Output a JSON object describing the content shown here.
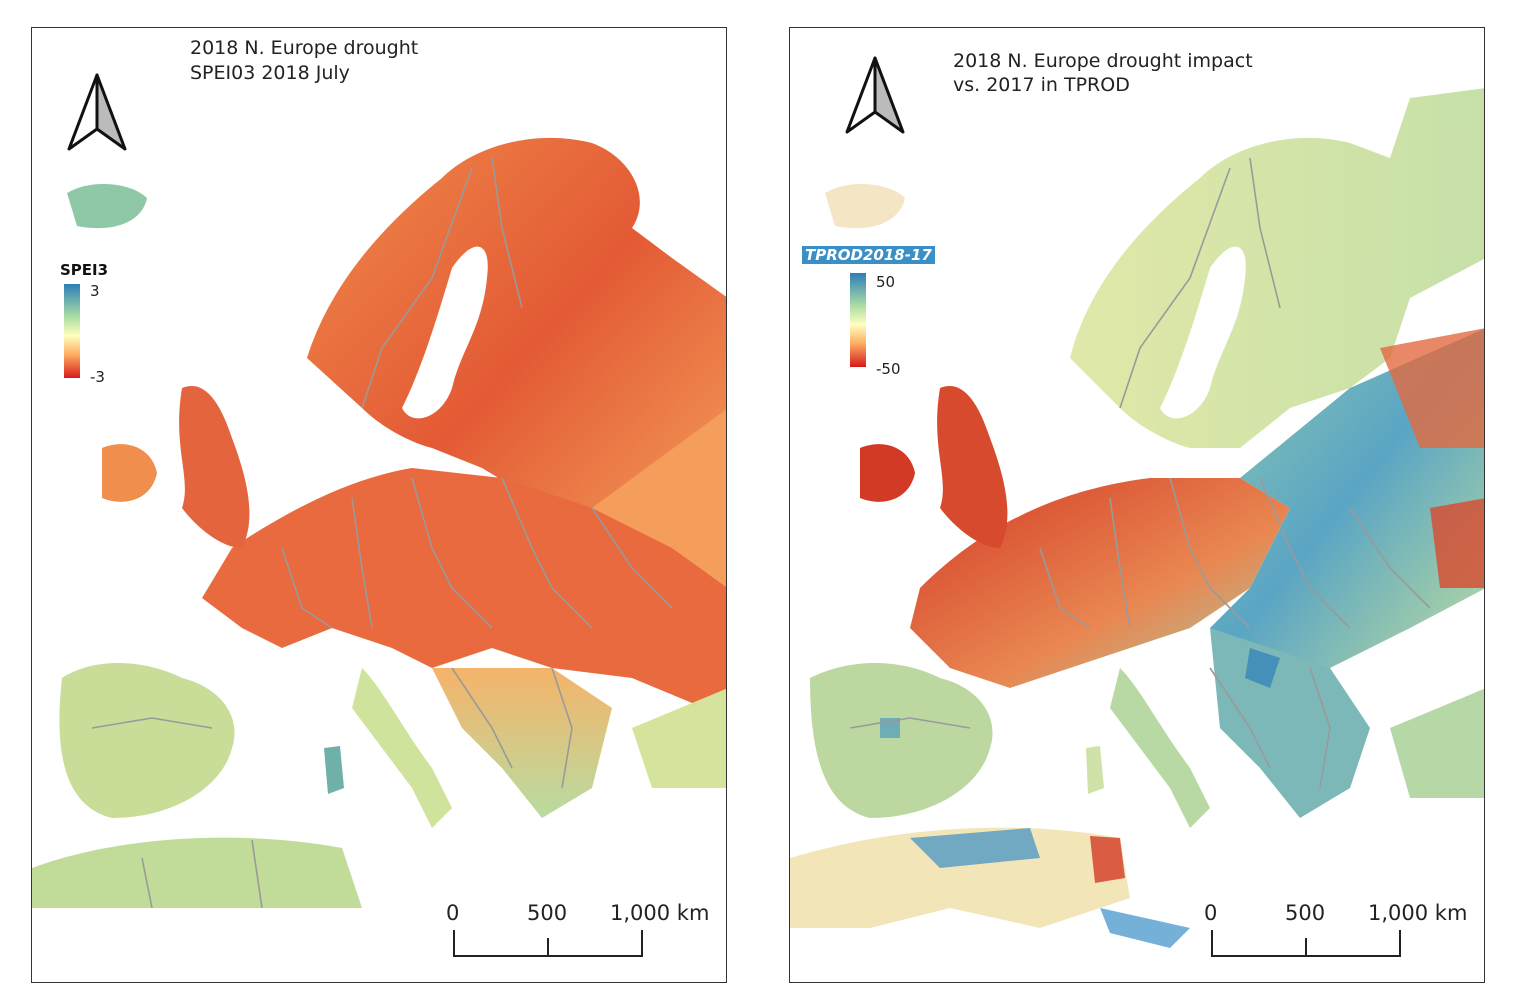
{
  "left_panel": {
    "title_line1": "2018 N. Europe drought",
    "title_line2": "SPEI03 2018 July",
    "legend": {
      "title": "SPEI3",
      "max_label": "3",
      "min_label": "-3"
    },
    "scalebar": {
      "label_0": "0",
      "label_500": "500",
      "label_1000": "1,000 km"
    },
    "icons": [
      "north-arrow-icon"
    ],
    "colors": {
      "high": "#2c7fb8",
      "mid": "#ffffbf",
      "low": "#d7191c",
      "border": "#9a9a9a"
    }
  },
  "right_panel": {
    "title_line1": "2018 N. Europe drought impact",
    "title_line2": "vs. 2017 in TPROD",
    "legend": {
      "title": "TPROD2018-17",
      "max_label": "50",
      "min_label": "-50"
    },
    "scalebar": {
      "label_0": "0",
      "label_500": "500",
      "label_1000": "1,000 km"
    },
    "icons": [
      "north-arrow-icon"
    ],
    "colors": {
      "high": "#2c7fb8",
      "mid": "#ffffbf",
      "low": "#d7191c",
      "border": "#9a9a9a"
    }
  }
}
